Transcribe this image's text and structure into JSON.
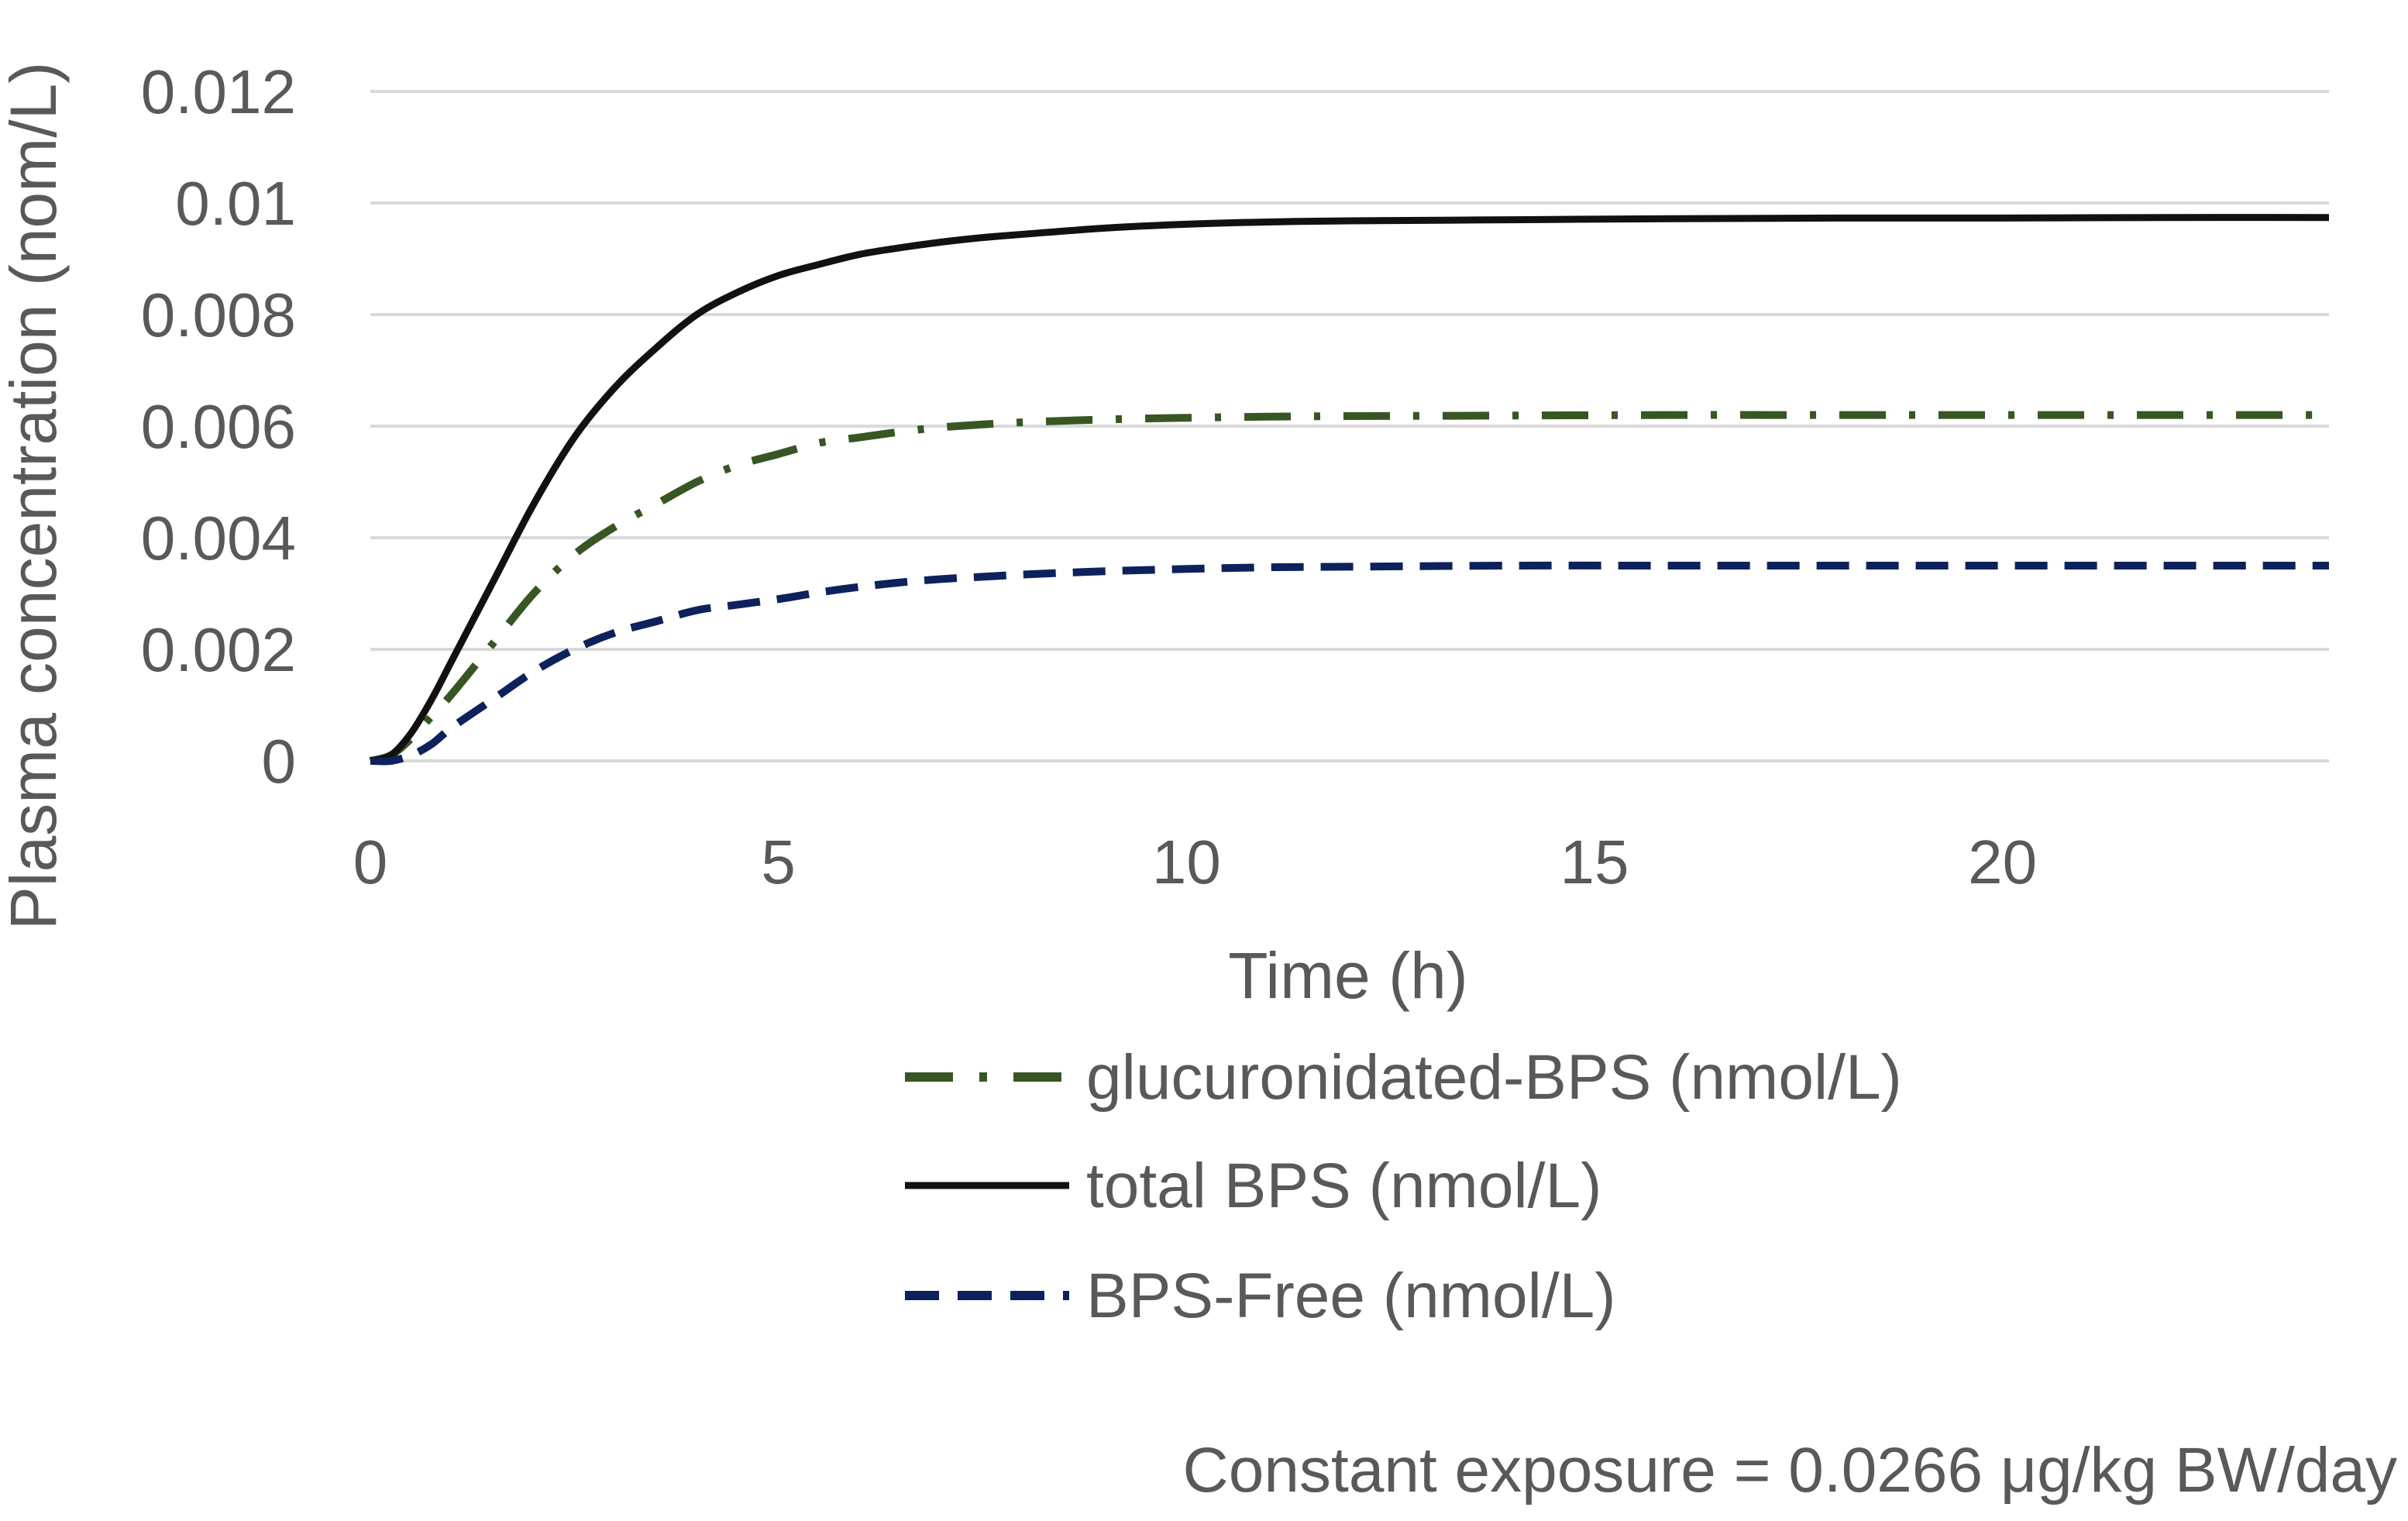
{
  "chart_data": {
    "type": "line",
    "title": "",
    "xlabel": "Time (h)",
    "ylabel": "Plasma concentration (nom/L)",
    "xlim": [
      0,
      24
    ],
    "ylim": [
      0,
      0.012
    ],
    "xticks": [
      0,
      5,
      10,
      15,
      20
    ],
    "xtick_labels": [
      "0",
      "5",
      "10",
      "15",
      "20"
    ],
    "yticks": [
      0,
      0.002,
      0.004,
      0.006,
      0.008,
      0.01,
      0.012
    ],
    "ytick_labels": [
      "0",
      "0.002",
      "0.004",
      "0.006",
      "0.008",
      "0.01",
      "0.012"
    ],
    "grid": true,
    "legend_position": "bottom-center",
    "x": [
      0,
      0.25,
      0.5,
      0.75,
      1,
      1.5,
      2,
      2.5,
      3,
      3.5,
      4,
      4.5,
      5,
      5.5,
      6,
      6.5,
      7,
      7.5,
      8,
      9,
      10,
      11,
      12,
      14,
      16,
      18,
      20,
      22,
      24
    ],
    "series": [
      {
        "name": "glucuronidated-BPS (nmol/L)",
        "color": "#375623",
        "dash": "dash-dot",
        "values": [
          0,
          0.0001,
          0.0004,
          0.0008,
          0.0012,
          0.0021,
          0.003,
          0.0037,
          0.0042,
          0.0046,
          0.005,
          0.0053,
          0.0055,
          0.0057,
          0.0058,
          0.0059,
          0.00598,
          0.00603,
          0.00607,
          0.00612,
          0.00615,
          0.00617,
          0.00618,
          0.00619,
          0.0062,
          0.0062,
          0.0062,
          0.0062,
          0.0062
        ]
      },
      {
        "name": "total BPS  (nmol/L)",
        "color": "#111111",
        "dash": "solid",
        "values": [
          0,
          0.0001,
          0.0005,
          0.0011,
          0.0018,
          0.0032,
          0.0046,
          0.0058,
          0.0067,
          0.0074,
          0.008,
          0.0084,
          0.0087,
          0.0089,
          0.00908,
          0.0092,
          0.0093,
          0.00938,
          0.00944,
          0.00955,
          0.00962,
          0.00966,
          0.00968,
          0.0097,
          0.00972,
          0.00973,
          0.00973,
          0.00974,
          0.00974
        ]
      },
      {
        "name": "BPS-Free  (nmol/L)",
        "color": "#0D215C",
        "dash": "dashed",
        "values": [
          0,
          0,
          0.0001,
          0.0003,
          0.0006,
          0.0011,
          0.0016,
          0.002,
          0.0023,
          0.0025,
          0.0027,
          0.0028,
          0.0029,
          0.00302,
          0.00312,
          0.0032,
          0.00326,
          0.0033,
          0.00334,
          0.0034,
          0.00344,
          0.00347,
          0.00348,
          0.0035,
          0.0035,
          0.0035,
          0.0035,
          0.0035,
          0.0035
        ]
      }
    ],
    "annotation": "Constant exposure = 0.0266 μg/kg BW/day"
  }
}
